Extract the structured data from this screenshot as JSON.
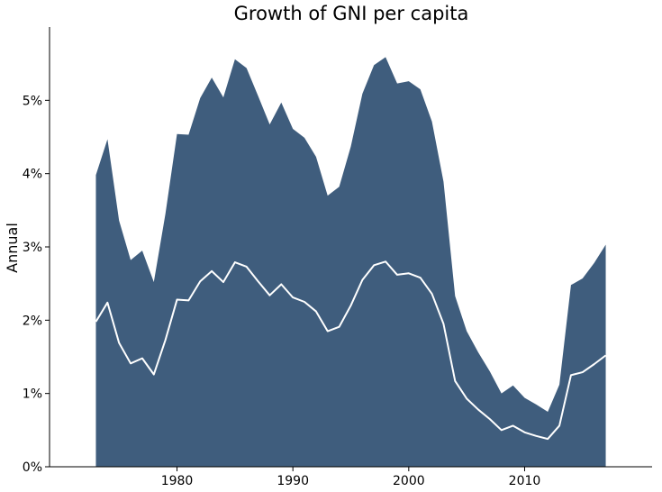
{
  "chart_data": {
    "type": "area",
    "title": "Growth of GNI per capita",
    "xlabel": "",
    "ylabel": "Annual",
    "xlim": [
      1969,
      2021
    ],
    "ylim": [
      0,
      6
    ],
    "x_ticks": [
      1980,
      1990,
      2000,
      2010
    ],
    "x_tick_labels": [
      "1980",
      "1990",
      "2000",
      "2010"
    ],
    "y_ticks": [
      0,
      1,
      2,
      3,
      4,
      5
    ],
    "y_tick_labels": [
      "0%",
      "1%",
      "2%",
      "3%",
      "4%",
      "5%"
    ],
    "grid": false,
    "legend": "none",
    "colors": {
      "area": "#3f5d7d",
      "line": "#ffffff"
    },
    "x": [
      1973,
      1974,
      1975,
      1976,
      1977,
      1978,
      1979,
      1980,
      1981,
      1982,
      1983,
      1984,
      1985,
      1986,
      1987,
      1988,
      1989,
      1990,
      1991,
      1992,
      1993,
      1994,
      1995,
      1996,
      1997,
      1998,
      1999,
      2000,
      2001,
      2002,
      2003,
      2004,
      2005,
      2006,
      2007,
      2008,
      2009,
      2010,
      2011,
      2012,
      2013,
      2014,
      2015,
      2016,
      2017
    ],
    "series": [
      {
        "type": "area",
        "values": [
          3.98,
          4.47,
          3.36,
          2.82,
          2.95,
          2.52,
          3.45,
          4.54,
          4.53,
          5.03,
          5.31,
          5.04,
          5.56,
          5.44,
          5.06,
          4.67,
          4.97,
          4.61,
          4.49,
          4.23,
          3.7,
          3.82,
          4.37,
          5.09,
          5.48,
          5.59,
          5.23,
          5.26,
          5.15,
          4.71,
          3.89,
          2.33,
          1.85,
          1.56,
          1.3,
          1.0,
          1.11,
          0.94,
          0.85,
          0.75,
          1.12,
          2.48,
          2.57,
          2.78,
          3.03
        ]
      },
      {
        "type": "line",
        "values": [
          1.98,
          2.24,
          1.69,
          1.41,
          1.48,
          1.26,
          1.73,
          2.28,
          2.27,
          2.53,
          2.67,
          2.52,
          2.79,
          2.73,
          2.53,
          2.34,
          2.49,
          2.31,
          2.25,
          2.12,
          1.85,
          1.91,
          2.2,
          2.55,
          2.75,
          2.8,
          2.62,
          2.64,
          2.58,
          2.36,
          1.95,
          1.17,
          0.93,
          0.78,
          0.65,
          0.5,
          0.56,
          0.47,
          0.42,
          0.38,
          0.56,
          1.25,
          1.29,
          1.4,
          1.52
        ]
      }
    ]
  }
}
